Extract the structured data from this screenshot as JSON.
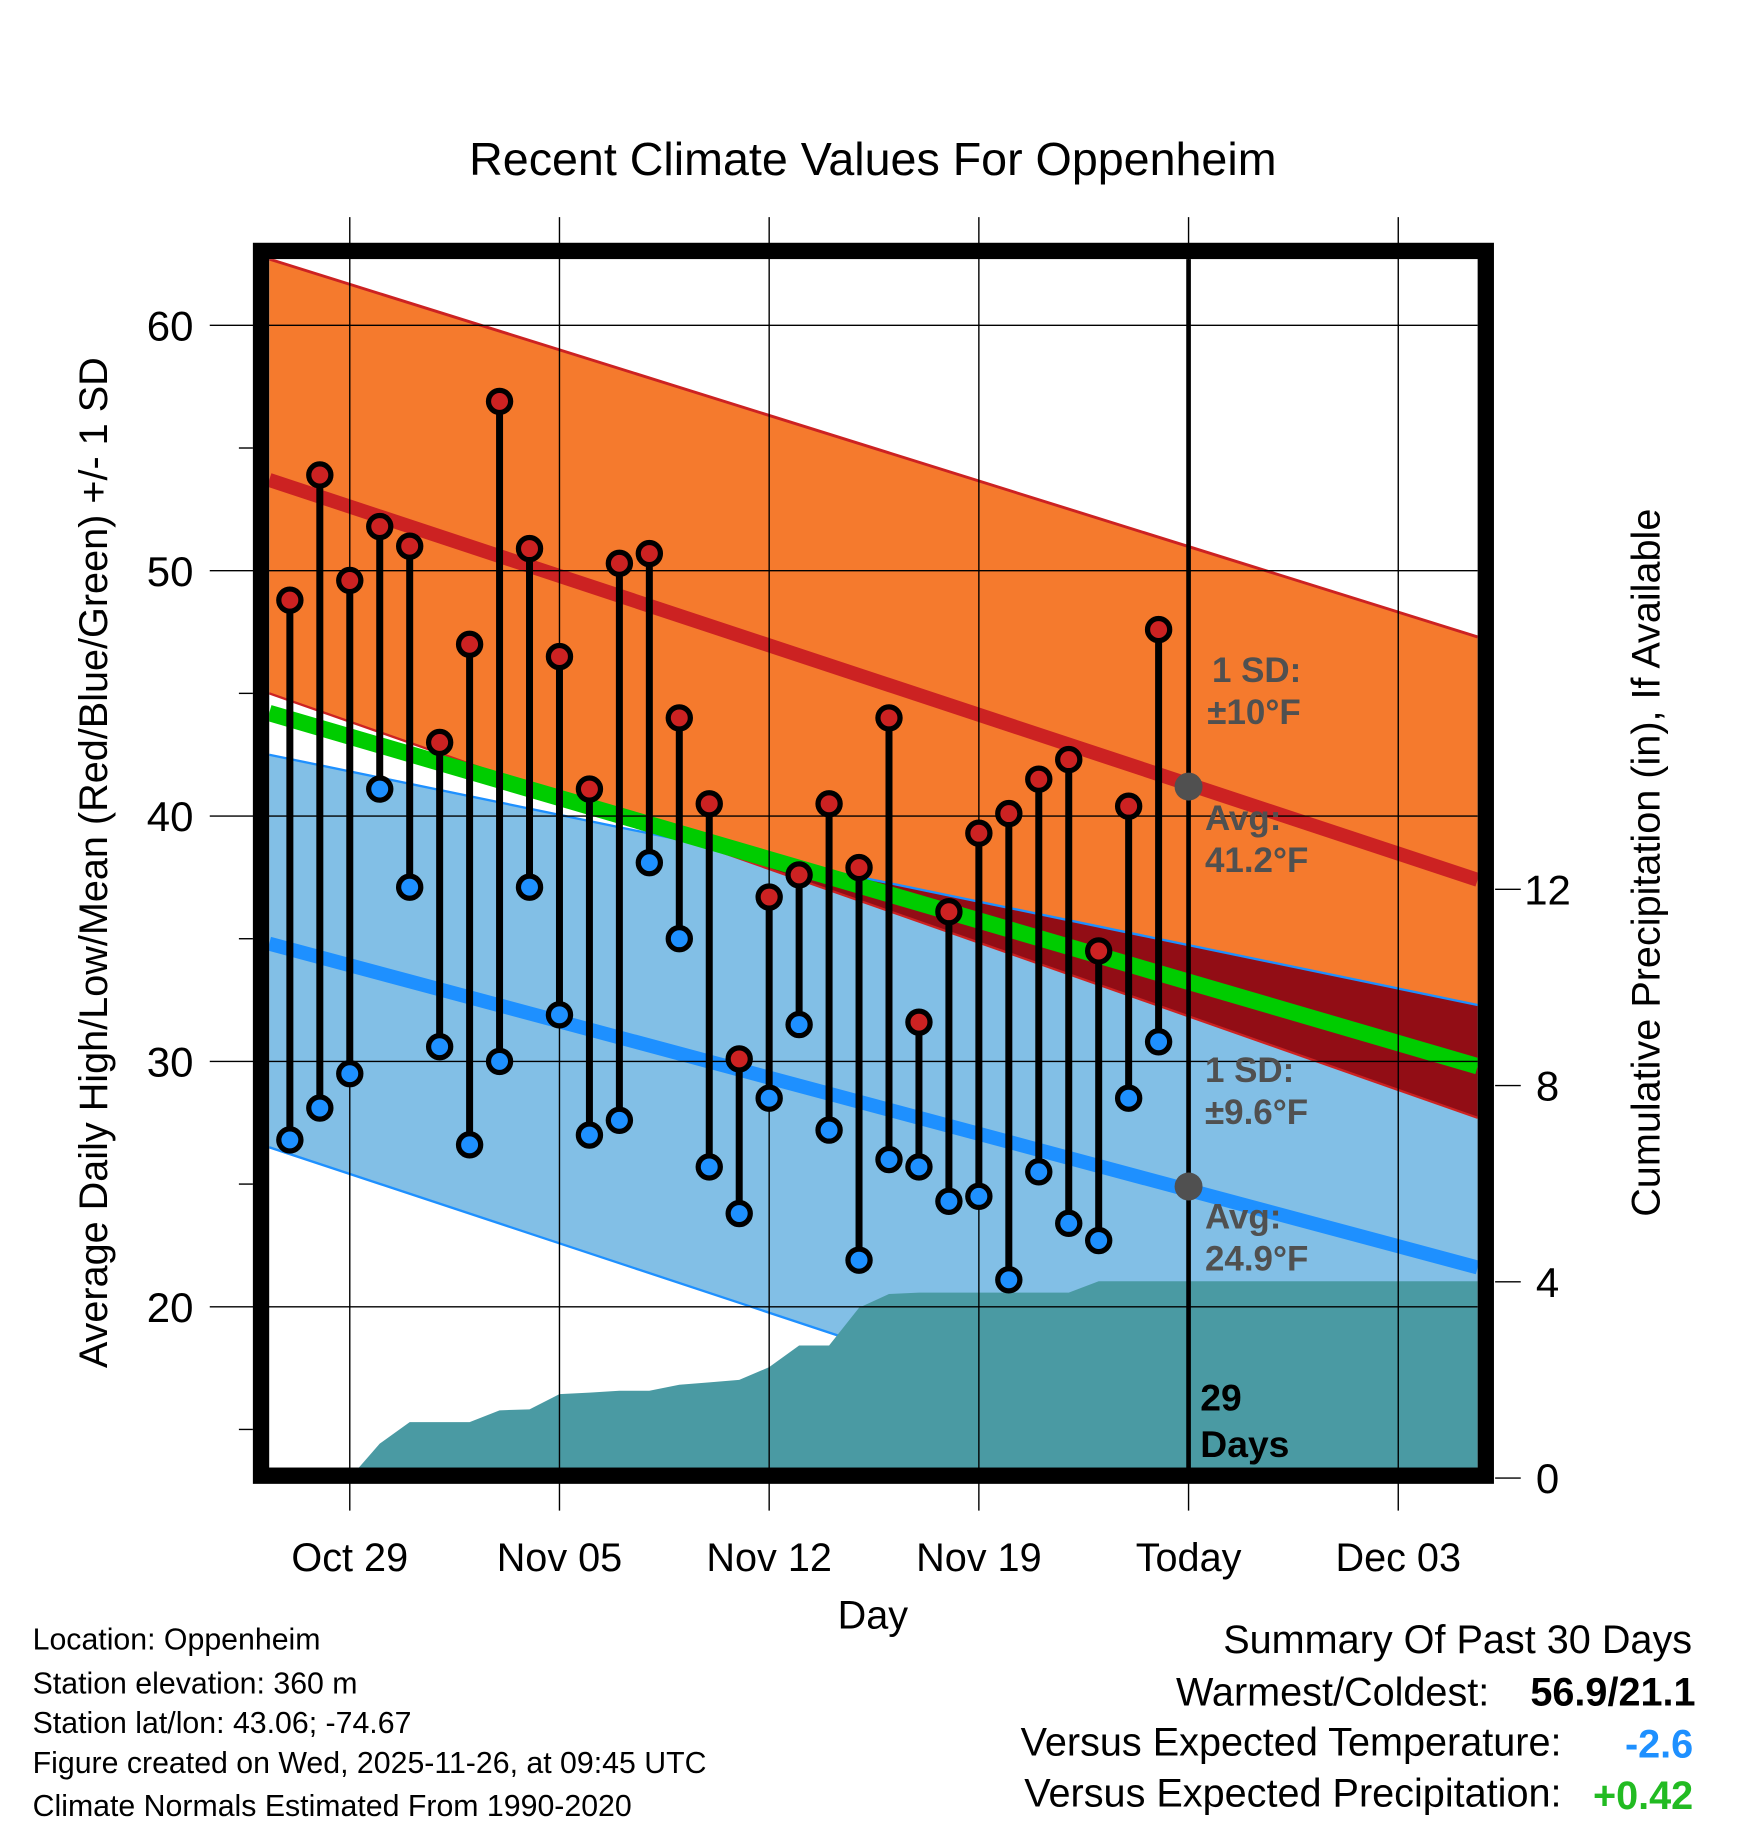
{
  "chart_data": {
    "type": "line",
    "title": "Recent Climate Values For Oppenheim",
    "xlabel": "Day",
    "ylabel": "Average Daily High/Low/Mean (Red/Blue/Green) +/- 1 SD",
    "y2label": "Cumulative Precipitation (in), If Available",
    "ylim": [
      13.4,
      62.7
    ],
    "y2lim": [
      0,
      24.8
    ],
    "xlim_days_from_oct29": [
      -2.69,
      37.65
    ],
    "yticks": [
      "60",
      "50",
      "40",
      "30",
      "20"
    ],
    "ytick_values": [
      60,
      50,
      40,
      30,
      20
    ],
    "y2ticks": [
      "12",
      "8",
      "4",
      "0"
    ],
    "y2tick_values": [
      12,
      8,
      4,
      0
    ],
    "xticks": [
      {
        "label": "Oct 29",
        "day": 0
      },
      {
        "label": "Nov 05",
        "day": 7
      },
      {
        "label": "Nov 12",
        "day": 14
      },
      {
        "label": "Nov 19",
        "day": 21
      },
      {
        "label": "Today",
        "day": 28
      },
      {
        "label": "Dec 03",
        "day": 35
      }
    ],
    "grid": true,
    "first_day_offset": -2,
    "highs": [
      48.8,
      53.9,
      49.6,
      51.8,
      51.0,
      43.0,
      47.0,
      56.9,
      50.9,
      46.5,
      41.1,
      50.3,
      50.7,
      44.0,
      40.5,
      30.1,
      36.7,
      37.6,
      40.5,
      37.9,
      44.0,
      31.6,
      36.1,
      39.3,
      40.1,
      41.5,
      42.3,
      34.5,
      40.4,
      47.6
    ],
    "lows": [
      26.8,
      28.1,
      29.5,
      41.1,
      37.1,
      30.6,
      26.6,
      30.0,
      37.1,
      31.9,
      27.0,
      27.6,
      38.1,
      35.0,
      25.7,
      23.8,
      28.5,
      31.5,
      27.2,
      21.9,
      26.0,
      25.7,
      24.3,
      24.5,
      21.1,
      25.5,
      23.4,
      22.7,
      28.5,
      30.8
    ],
    "normals": {
      "high_avg": [
        53.7,
        37.4
      ],
      "high_plus_sd": [
        62.7,
        47.3
      ],
      "high_minus_sd": [
        45.0,
        27.7
      ],
      "low_avg": [
        34.8,
        21.6
      ],
      "low_plus_sd": [
        42.5,
        32.3
      ],
      "low_minus_sd": [
        26.5,
        10.2
      ],
      "mean": [
        44.2,
        29.8
      ]
    },
    "precip_start_day": 0,
    "precip_cumulative": [
      0.0,
      0.7,
      1.14,
      1.14,
      1.14,
      1.38,
      1.4,
      1.71,
      1.74,
      1.78,
      1.78,
      1.9,
      1.95,
      2.0,
      2.26,
      2.7,
      2.7,
      3.47,
      3.75,
      3.78,
      3.78,
      3.78,
      3.78,
      3.78,
      3.78,
      4.01,
      4.01,
      4.01
    ],
    "today_day": 28,
    "today_high_avg": 41.2,
    "today_low_avg": 24.9,
    "annotations": {
      "high_sd_label": "1 SD:",
      "high_sd_value": "±10°F",
      "high_avg_label": "Avg:",
      "high_avg_value": "41.2°F",
      "low_sd_label": "1 SD:",
      "low_sd_value": "±9.6°F",
      "low_avg_label": "Avg:",
      "low_avg_value": "24.9°F",
      "days_count": "29",
      "days_label": "Days"
    },
    "colors": {
      "orange": "#f57a2d",
      "high_line": "#cc2222",
      "overlap": "#920d15",
      "green": "#00cc00",
      "blue": "#1e90ff",
      "light_blue": "#82bfe6",
      "precip": "#4a9aa3",
      "gray": "#505050"
    }
  },
  "info": {
    "location": "Location: Oppenheim",
    "elevation": "Station elevation: 360 m",
    "latlon": "Station lat/lon: 43.06; -74.67",
    "created": "Figure created on Wed, 2025-11-26, at 09:45 UTC",
    "normals": "Climate Normals Estimated From 1990-2020"
  },
  "summary": {
    "title": "Summary Of Past 30 Days",
    "warmest_label": "Warmest/Coldest:",
    "warmest_value": "56.9/21.1",
    "temp_label": "Versus Expected Temperature:",
    "temp_value": "-2.6",
    "temp_color": "#1e90ff",
    "precip_label": "Versus Expected Precipitation:",
    "precip_value": "+0.42",
    "precip_color": "#22bb22"
  }
}
